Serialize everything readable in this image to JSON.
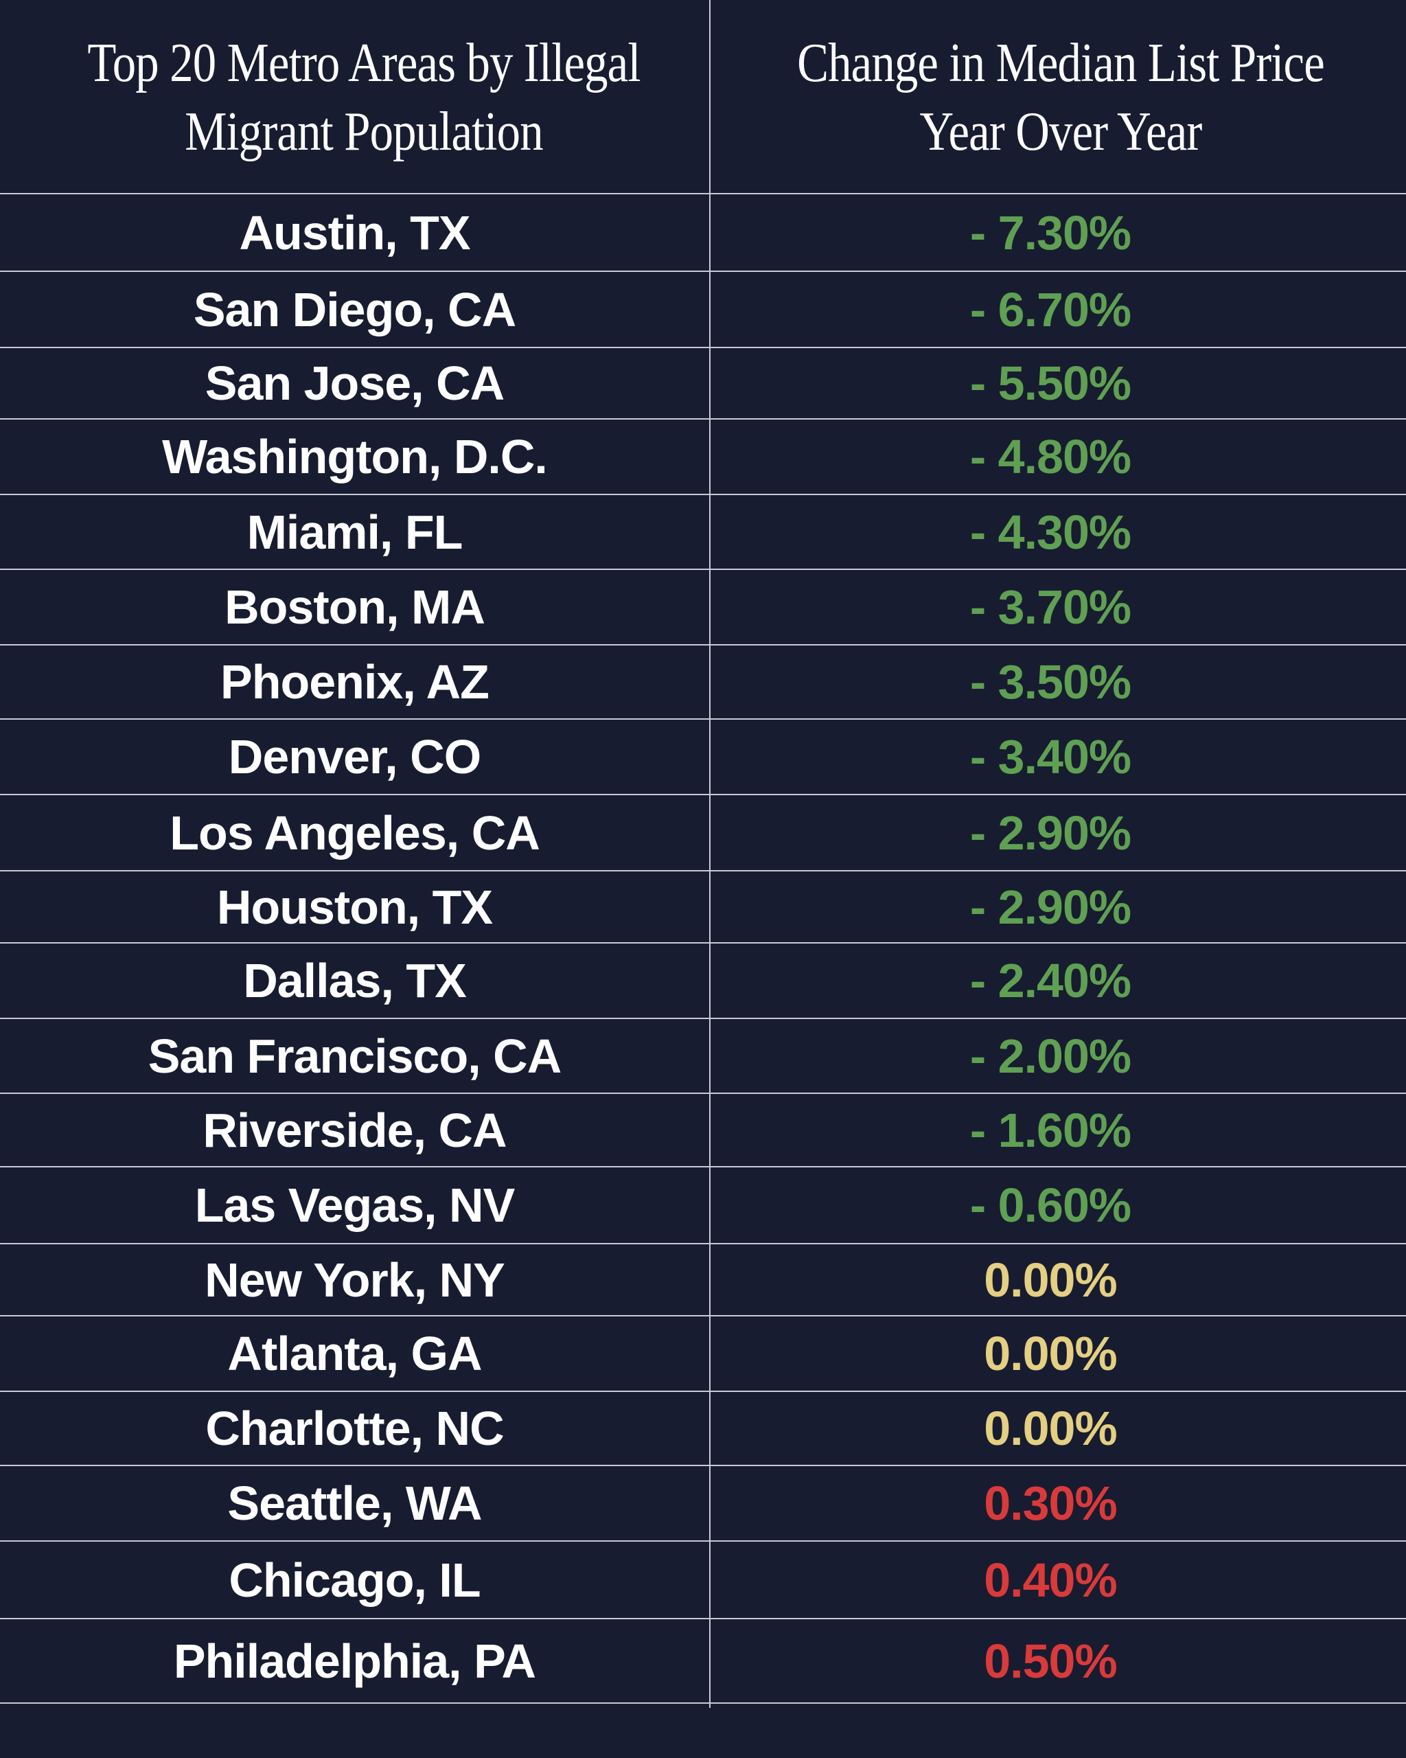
{
  "chart_data": {
    "type": "table",
    "columns": [
      "Top 20 Metro Areas by Illegal Migrant Population",
      "Change in Median List Price Year Over Year"
    ],
    "header_lines": {
      "left": [
        "Top 20 Metro Areas by Illegal",
        "Migrant Population"
      ],
      "right": [
        "Change in Median List Price",
        "Year Over Year"
      ]
    },
    "colors": {
      "background": "#181c30",
      "text": "#ffffff",
      "decrease": "#5fa053",
      "no_change": "#e4cf82",
      "increase": "#d93a3a",
      "rule": "#c8cad4"
    },
    "rows": [
      {
        "metro": "Austin, TX",
        "change": "- 7.30%",
        "value": -7.3
      },
      {
        "metro": "San Diego, CA",
        "change": "- 6.70%",
        "value": -6.7
      },
      {
        "metro": "San Jose, CA",
        "change": "- 5.50%",
        "value": -5.5
      },
      {
        "metro": "Washington, D.C.",
        "change": "- 4.80%",
        "value": -4.8
      },
      {
        "metro": "Miami, FL",
        "change": "- 4.30%",
        "value": -4.3
      },
      {
        "metro": "Boston, MA",
        "change": "- 3.70%",
        "value": -3.7
      },
      {
        "metro": "Phoenix, AZ",
        "change": "- 3.50%",
        "value": -3.5
      },
      {
        "metro": "Denver, CO",
        "change": "- 3.40%",
        "value": -3.4
      },
      {
        "metro": "Los Angeles, CA",
        "change": "- 2.90%",
        "value": -2.9
      },
      {
        "metro": "Houston, TX",
        "change": "- 2.90%",
        "value": -2.9
      },
      {
        "metro": "Dallas, TX",
        "change": "- 2.40%",
        "value": -2.4
      },
      {
        "metro": "San Francisco, CA",
        "change": "- 2.00%",
        "value": -2.0
      },
      {
        "metro": "Riverside, CA",
        "change": "- 1.60%",
        "value": -1.6
      },
      {
        "metro": "Las Vegas, NV",
        "change": "- 0.60%",
        "value": -0.6
      },
      {
        "metro": "New York, NY",
        "change": "0.00%",
        "value": 0.0
      },
      {
        "metro": "Atlanta, GA",
        "change": "0.00%",
        "value": 0.0
      },
      {
        "metro": "Charlotte, NC",
        "change": "0.00%",
        "value": 0.0
      },
      {
        "metro": "Seattle, WA",
        "change": "0.30%",
        "value": 0.3
      },
      {
        "metro": "Chicago, IL",
        "change": "0.40%",
        "value": 0.4
      },
      {
        "metro": "Philadelphia, PA",
        "change": "0.50%",
        "value": 0.5
      }
    ]
  }
}
